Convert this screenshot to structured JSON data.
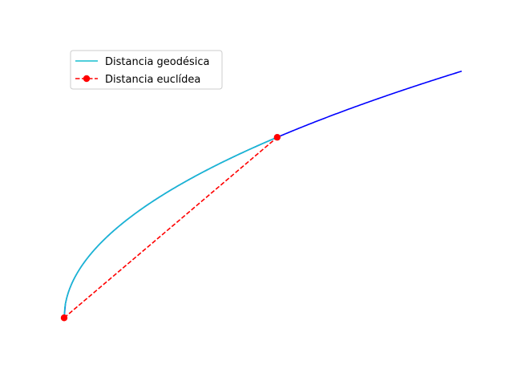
{
  "chart_data": {
    "type": "line",
    "title": "",
    "xlabel": "",
    "ylabel": "",
    "axes_visible": false,
    "grid": false,
    "legend_placement": "upper-left",
    "xlim": [
      0,
      1.0
    ],
    "ylim": [
      -0.1,
      1.1
    ],
    "series": [
      {
        "name": "",
        "role": "manifold-curve",
        "color": "#0000ff",
        "linestyle": "solid",
        "function": "sqrt",
        "x_range": [
          0,
          1.0
        ]
      },
      {
        "name": "Distancia geodésica",
        "role": "geodesic",
        "color": "#17becf",
        "linestyle": "solid",
        "function": "sqrt",
        "x_range": [
          0,
          0.536
        ]
      },
      {
        "name": "Distancia euclídea",
        "role": "euclidean",
        "color": "#ff0000",
        "linestyle": "dashed",
        "marker": "o",
        "x": [
          0,
          0.536
        ],
        "y": [
          0,
          0.732
        ]
      }
    ]
  }
}
